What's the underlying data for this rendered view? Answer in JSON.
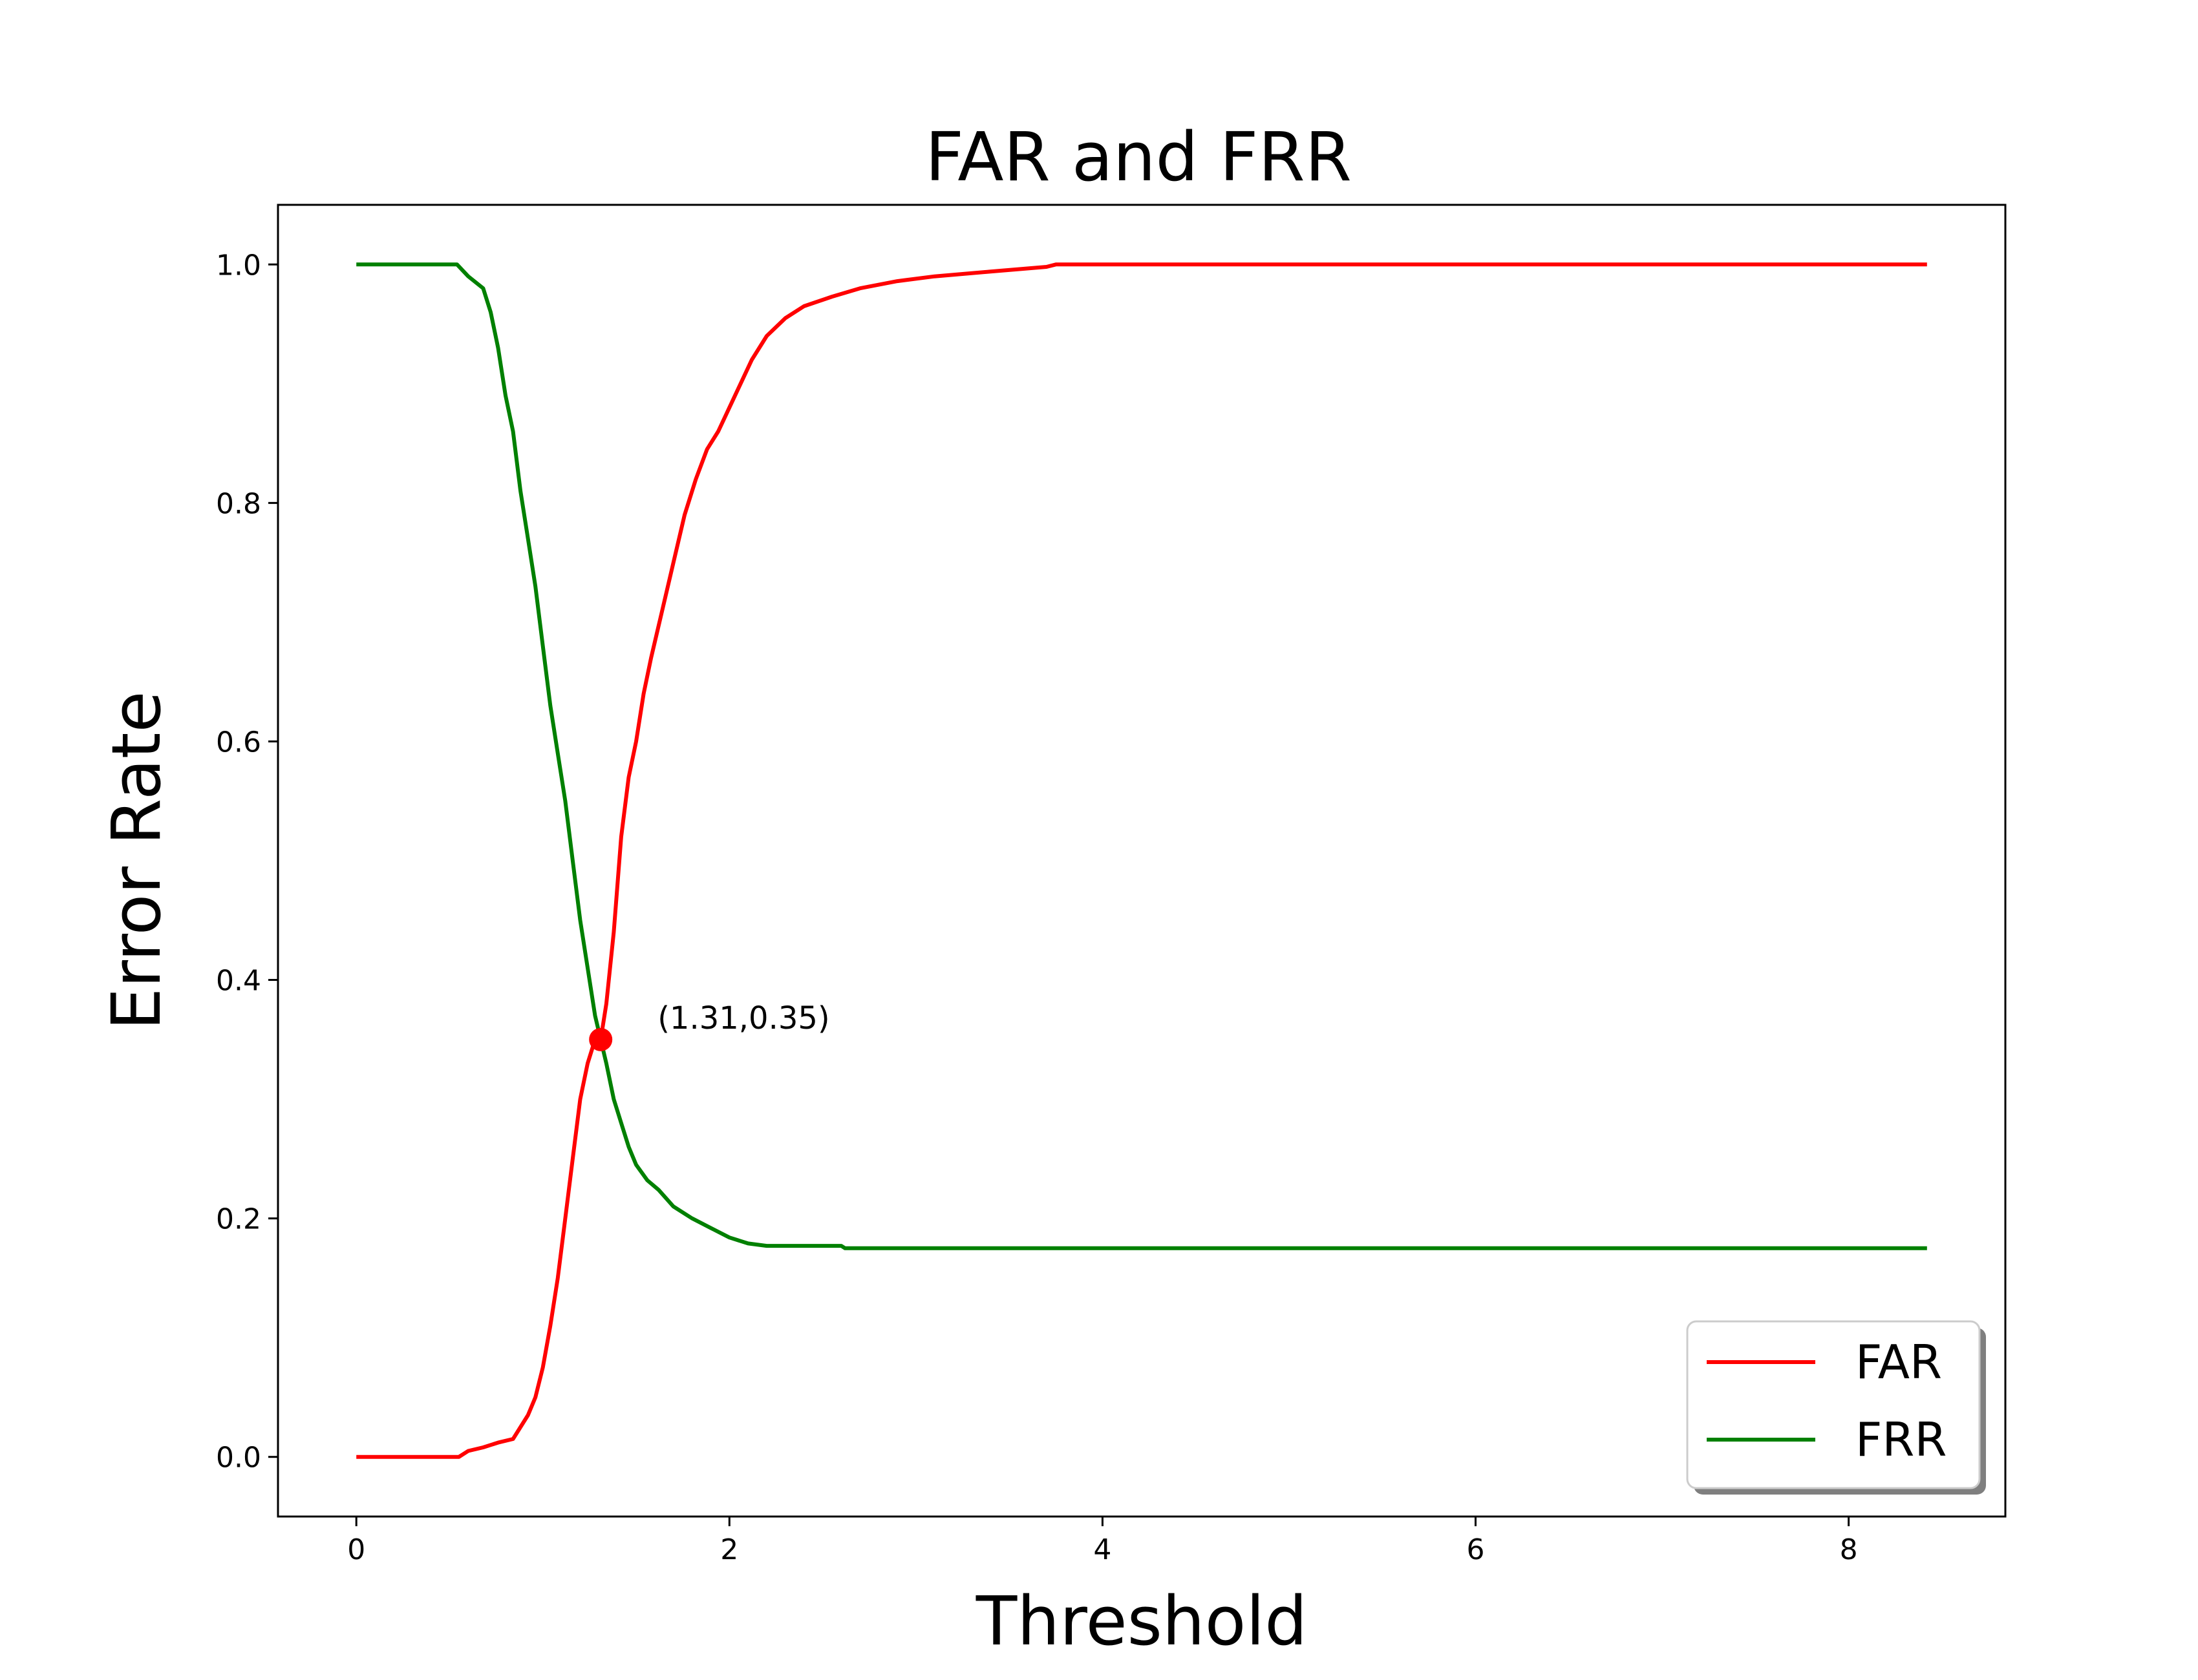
{
  "chart_data": {
    "type": "line",
    "title": "FAR and FRR",
    "xlabel": "Threshold",
    "ylabel": "Error Rate",
    "xlim": [
      -0.42,
      8.84
    ],
    "ylim": [
      -0.05,
      1.05
    ],
    "xticks": [
      0,
      2,
      4,
      6,
      8
    ],
    "yticks": [
      0.0,
      0.2,
      0.4,
      0.6,
      0.8,
      1.0
    ],
    "xtick_labels": [
      "0",
      "2",
      "4",
      "6",
      "8"
    ],
    "ytick_labels": [
      "0.0",
      "0.2",
      "0.4",
      "0.6",
      "0.8",
      "1.0"
    ],
    "grid": false,
    "legend_position": "lower-right",
    "series": [
      {
        "name": "FAR",
        "color": "#ff0000",
        "points": [
          [
            0.0,
            0.0
          ],
          [
            0.55,
            0.0
          ],
          [
            0.6,
            0.005
          ],
          [
            0.68,
            0.008
          ],
          [
            0.76,
            0.012
          ],
          [
            0.84,
            0.015
          ],
          [
            0.88,
            0.025
          ],
          [
            0.92,
            0.035
          ],
          [
            0.96,
            0.05
          ],
          [
            1.0,
            0.075
          ],
          [
            1.04,
            0.11
          ],
          [
            1.08,
            0.15
          ],
          [
            1.12,
            0.2
          ],
          [
            1.16,
            0.25
          ],
          [
            1.2,
            0.3
          ],
          [
            1.24,
            0.33
          ],
          [
            1.28,
            0.35
          ],
          [
            1.31,
            0.35
          ],
          [
            1.34,
            0.38
          ],
          [
            1.38,
            0.44
          ],
          [
            1.42,
            0.52
          ],
          [
            1.46,
            0.57
          ],
          [
            1.5,
            0.6
          ],
          [
            1.54,
            0.64
          ],
          [
            1.58,
            0.67
          ],
          [
            1.64,
            0.71
          ],
          [
            1.7,
            0.75
          ],
          [
            1.76,
            0.79
          ],
          [
            1.82,
            0.82
          ],
          [
            1.88,
            0.845
          ],
          [
            1.94,
            0.86
          ],
          [
            2.0,
            0.88
          ],
          [
            2.06,
            0.9
          ],
          [
            2.12,
            0.92
          ],
          [
            2.2,
            0.94
          ],
          [
            2.3,
            0.955
          ],
          [
            2.4,
            0.965
          ],
          [
            2.55,
            0.973
          ],
          [
            2.7,
            0.98
          ],
          [
            2.9,
            0.986
          ],
          [
            3.1,
            0.99
          ],
          [
            3.4,
            0.994
          ],
          [
            3.7,
            0.998
          ],
          [
            3.75,
            1.0
          ],
          [
            8.42,
            1.0
          ]
        ]
      },
      {
        "name": "FRR",
        "color": "#008000",
        "points": [
          [
            0.0,
            1.0
          ],
          [
            0.54,
            1.0
          ],
          [
            0.6,
            0.99
          ],
          [
            0.68,
            0.98
          ],
          [
            0.72,
            0.96
          ],
          [
            0.76,
            0.93
          ],
          [
            0.8,
            0.89
          ],
          [
            0.84,
            0.86
          ],
          [
            0.88,
            0.81
          ],
          [
            0.92,
            0.77
          ],
          [
            0.96,
            0.73
          ],
          [
            1.0,
            0.68
          ],
          [
            1.04,
            0.63
          ],
          [
            1.08,
            0.59
          ],
          [
            1.12,
            0.55
          ],
          [
            1.16,
            0.5
          ],
          [
            1.2,
            0.45
          ],
          [
            1.24,
            0.41
          ],
          [
            1.28,
            0.37
          ],
          [
            1.31,
            0.35
          ],
          [
            1.34,
            0.33
          ],
          [
            1.38,
            0.3
          ],
          [
            1.42,
            0.28
          ],
          [
            1.46,
            0.26
          ],
          [
            1.5,
            0.245
          ],
          [
            1.56,
            0.232
          ],
          [
            1.62,
            0.224
          ],
          [
            1.7,
            0.21
          ],
          [
            1.8,
            0.2
          ],
          [
            1.9,
            0.192
          ],
          [
            2.0,
            0.184
          ],
          [
            2.1,
            0.179
          ],
          [
            2.2,
            0.177
          ],
          [
            2.6,
            0.177
          ],
          [
            2.62,
            0.175
          ],
          [
            8.42,
            0.175
          ]
        ]
      }
    ],
    "highlight_point": {
      "x": 1.31,
      "y": 0.35,
      "color": "#ff0000",
      "label": "(1.31,0.35)"
    }
  }
}
